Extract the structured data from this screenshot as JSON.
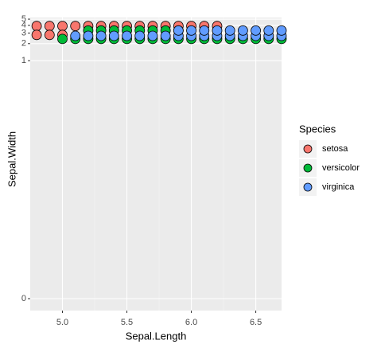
{
  "chart_data": {
    "type": "scatter",
    "x_label": "Sepal.Length",
    "y_label": "Sepal.Width",
    "legend_title": "Species",
    "xlim": [
      4.75,
      6.7
    ],
    "xticks": [
      {
        "value": 5,
        "label": "5.0"
      },
      {
        "value": 5.5,
        "label": "5.5"
      },
      {
        "value": 6,
        "label": "6.0"
      },
      {
        "value": 6.5,
        "label": "6.5"
      }
    ],
    "ylim": [
      0,
      5.3
    ],
    "yticks": [
      0,
      1,
      2,
      3,
      4,
      5
    ],
    "yscale": {
      "type": "power",
      "exponent": 0.1
    },
    "grid": true,
    "legend": "right",
    "series": [
      {
        "name": "setosa",
        "color": "#f8766d",
        "x": [
          4.8,
          4.9,
          5.0,
          5.1,
          5.2,
          5.3,
          5.4,
          5.5,
          5.6,
          5.7,
          5.8,
          5.9,
          6.0,
          6.1,
          6.2,
          4.8,
          4.9,
          5.0
        ],
        "y": [
          3.9,
          3.9,
          3.9,
          3.9,
          3.9,
          3.9,
          3.9,
          3.9,
          3.9,
          3.9,
          3.9,
          3.9,
          3.9,
          3.9,
          3.9,
          2.8,
          2.8,
          2.8
        ]
      },
      {
        "name": "versicolor",
        "color": "#00ba38",
        "x": [
          5.0,
          5.1,
          5.2,
          5.3,
          5.4,
          5.5,
          5.6,
          5.7,
          5.8,
          5.9,
          6.0,
          6.1,
          6.2,
          6.3,
          6.4,
          6.5,
          6.6,
          6.7,
          5.2,
          5.3,
          5.4,
          5.5,
          5.6,
          5.7,
          5.8,
          5.9
        ],
        "y": [
          2.4,
          2.4,
          2.4,
          2.4,
          2.4,
          2.4,
          2.4,
          2.4,
          2.4,
          2.4,
          2.4,
          2.4,
          2.4,
          2.4,
          2.4,
          2.4,
          2.4,
          2.4,
          3.3,
          3.3,
          3.3,
          3.3,
          3.3,
          3.3,
          3.3,
          3.3
        ]
      },
      {
        "name": "virginica",
        "color": "#619cff",
        "x": [
          5.1,
          5.2,
          5.3,
          5.4,
          5.5,
          5.6,
          5.7,
          5.8,
          5.9,
          6.0,
          6.1,
          6.2,
          6.3,
          6.4,
          6.5,
          6.6,
          6.7,
          5.9,
          6.0,
          6.1,
          6.2,
          6.3,
          6.4,
          6.5,
          6.6,
          6.7
        ],
        "y": [
          2.7,
          2.7,
          2.7,
          2.7,
          2.7,
          2.7,
          2.7,
          2.7,
          2.7,
          2.7,
          2.7,
          2.7,
          2.7,
          2.7,
          2.7,
          2.7,
          2.7,
          3.3,
          3.3,
          3.3,
          3.3,
          3.3,
          3.3,
          3.3,
          3.3,
          3.3
        ]
      }
    ]
  }
}
